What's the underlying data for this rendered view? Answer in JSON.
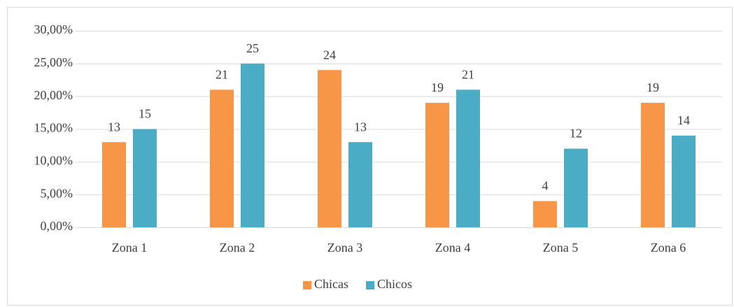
{
  "chart_data": {
    "type": "bar",
    "categories": [
      "Zona 1",
      "Zona 2",
      "Zona 3",
      "Zona 4",
      "Zona 5",
      "Zona 6"
    ],
    "series": [
      {
        "name": "Chicas",
        "color": "#f79646",
        "values": [
          13,
          21,
          24,
          19,
          4,
          19
        ]
      },
      {
        "name": "Chicos",
        "color": "#4bacc6",
        "values": [
          15,
          25,
          13,
          21,
          12,
          14
        ]
      }
    ],
    "ylim": [
      0,
      30
    ],
    "yticks": [
      {
        "value": 0,
        "label": "0,00%"
      },
      {
        "value": 5,
        "label": "5,00%"
      },
      {
        "value": 10,
        "label": "10,00%"
      },
      {
        "value": 15,
        "label": "15,00%"
      },
      {
        "value": 20,
        "label": "20,00%"
      },
      {
        "value": 25,
        "label": "25,00%"
      },
      {
        "value": 30,
        "label": "30,00%"
      }
    ],
    "grid": true,
    "legend": "bottom"
  }
}
